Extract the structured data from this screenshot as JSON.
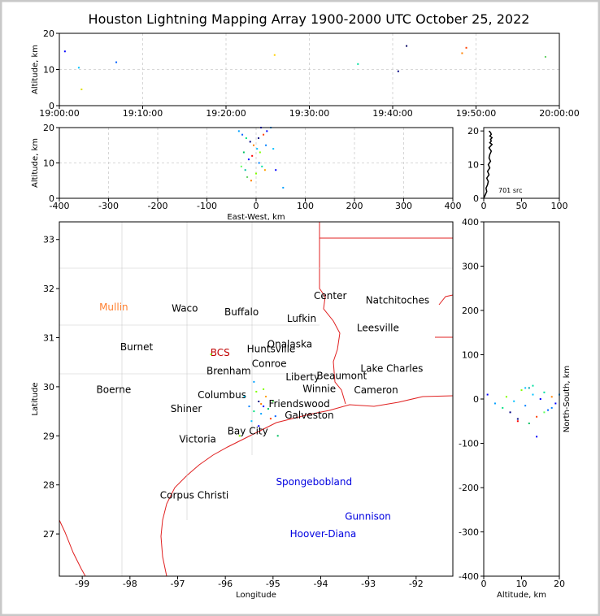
{
  "chart_data": [
    {
      "type": "scatter",
      "title": "Houston Lightning Mapping Array 1900-2000 UTC October 25, 2022",
      "ylabel": "Altitude, km",
      "x": [
        "19:00:40",
        "19:02:20",
        "19:02:40",
        "19:06:50",
        "19:25:50",
        "19:35:50",
        "19:40:40",
        "19:41:40",
        "19:48:20",
        "19:48:50",
        "19:58:20"
      ],
      "y": [
        15,
        10.5,
        4.5,
        12,
        14,
        11.5,
        9.5,
        16.5,
        14.5,
        16,
        13.5
      ],
      "colors": [
        "#0000ff",
        "#00c0ff",
        "#e0e000",
        "#0060ff",
        "#ffd000",
        "#00e0a0",
        "#000080",
        "#000060",
        "#ff8000",
        "#ff4000",
        "#60d060"
      ],
      "xlim": [
        "19:00:00",
        "20:00:00"
      ],
      "xticks": [
        "19:00:00",
        "19:10:00",
        "19:20:00",
        "19:30:00",
        "19:40:00",
        "19:50:00",
        "20:00:00"
      ],
      "ylim": [
        0,
        20
      ],
      "yticks": [
        0,
        10,
        20
      ],
      "grid": true
    },
    {
      "type": "scatter",
      "xlabel": "East-West, km",
      "ylabel": "Altitude, km",
      "x": [
        -35,
        -28,
        -20,
        -12,
        -5,
        2,
        8,
        15,
        22,
        30,
        -30,
        -22,
        -15,
        -8,
        0,
        6,
        12,
        18,
        40,
        55,
        -25,
        -10,
        5,
        20,
        35,
        -18,
        10
      ],
      "y": [
        19,
        18,
        17,
        16,
        15,
        14,
        13,
        18,
        19,
        20,
        9,
        8,
        11,
        12,
        7,
        10,
        9,
        8,
        8,
        3,
        13,
        5,
        17,
        15,
        14,
        6,
        20
      ],
      "colors": [
        "#00a0ff",
        "#0060ff",
        "#00e080",
        "#000080",
        "#ff8000",
        "#00c0ff",
        "#80ff00",
        "#ff4000",
        "#0000ff",
        "#00a0ff",
        "#60ff60",
        "#00c0a0",
        "#0000ff",
        "#ff0000",
        "#80ff00",
        "#0080ff",
        "#00e0a0",
        "#ffa000",
        "#0000ff",
        "#00a0ff",
        "#00c060",
        "#ff8000",
        "#000080",
        "#0080ff",
        "#00c0ff",
        "#60d060",
        "#0000ff"
      ],
      "xlim": [
        -400,
        400
      ],
      "xticks": [
        -400,
        -300,
        -200,
        -100,
        0,
        100,
        200,
        300,
        400
      ],
      "ylim": [
        0,
        20
      ],
      "yticks": [
        0,
        10,
        20
      ],
      "grid": true
    },
    {
      "type": "line",
      "annotation": "701 src",
      "x": [
        0,
        2,
        4,
        3,
        5,
        6,
        4,
        7,
        5,
        8,
        6,
        9,
        7,
        8,
        10,
        7,
        9,
        11,
        8,
        10,
        9,
        11,
        8,
        10,
        9,
        7
      ],
      "y": [
        0,
        1,
        2,
        3,
        4,
        5,
        6,
        7,
        8,
        9,
        10,
        11,
        12,
        13,
        14,
        15,
        15.5,
        16,
        16.5,
        17,
        17.5,
        18,
        18.5,
        19,
        19.5,
        20
      ],
      "xlim": [
        0,
        100
      ],
      "xticks": [
        0,
        50,
        100
      ],
      "ylim": [
        0,
        21
      ],
      "yticks": [
        0,
        10,
        20
      ],
      "color": "#000000"
    },
    {
      "type": "map",
      "xlabel": "Longitude",
      "ylabel": "Latitude",
      "xlim": [
        -99.48,
        -91.23
      ],
      "xticks": [
        -99,
        -98,
        -97,
        -96,
        -95,
        -94,
        -93,
        -92
      ],
      "ylim": [
        26.14,
        33.36
      ],
      "yticks": [
        27,
        28,
        29,
        30,
        31,
        32,
        33
      ],
      "places": [
        {
          "name": "Mullin",
          "lon": -98.34,
          "lat": 31.62,
          "color": "#ff8030"
        },
        {
          "name": "Waco",
          "lon": -96.85,
          "lat": 31.6,
          "color": "#000000"
        },
        {
          "name": "Buffalo",
          "lon": -95.66,
          "lat": 31.52,
          "color": "#000000"
        },
        {
          "name": "Center",
          "lon": -93.8,
          "lat": 31.85,
          "color": "#000000"
        },
        {
          "name": "Natchitoches",
          "lon": -92.39,
          "lat": 31.76,
          "color": "#000000"
        },
        {
          "name": "Lufkin",
          "lon": -94.4,
          "lat": 31.39,
          "color": "#000000"
        },
        {
          "name": "Leesville",
          "lon": -92.8,
          "lat": 31.2,
          "color": "#000000"
        },
        {
          "name": "Burnet",
          "lon": -97.86,
          "lat": 30.81,
          "color": "#000000"
        },
        {
          "name": "BCS",
          "lon": -96.11,
          "lat": 30.69,
          "color": "#c00000"
        },
        {
          "name": "Huntsville",
          "lon": -95.04,
          "lat": 30.77,
          "color": "#000000"
        },
        {
          "name": "Onalaska",
          "lon": -94.65,
          "lat": 30.87,
          "color": "#000000"
        },
        {
          "name": "Conroe",
          "lon": -95.08,
          "lat": 30.47,
          "color": "#000000"
        },
        {
          "name": "Brenham",
          "lon": -95.93,
          "lat": 30.32,
          "color": "#000000"
        },
        {
          "name": "Lake Charles",
          "lon": -92.51,
          "lat": 30.37,
          "color": "#000000"
        },
        {
          "name": "Liberty",
          "lon": -94.38,
          "lat": 30.2,
          "color": "#000000"
        },
        {
          "name": "Beaumont",
          "lon": -93.56,
          "lat": 30.22,
          "color": "#000000"
        },
        {
          "name": "Boerne",
          "lon": -98.34,
          "lat": 29.94,
          "color": "#000000"
        },
        {
          "name": "Winnie",
          "lon": -94.03,
          "lat": 29.96,
          "color": "#000000"
        },
        {
          "name": "Cameron",
          "lon": -92.84,
          "lat": 29.93,
          "color": "#000000"
        },
        {
          "name": "Columbus",
          "lon": -96.07,
          "lat": 29.83,
          "color": "#000000"
        },
        {
          "name": "Shiner",
          "lon": -96.82,
          "lat": 29.55,
          "color": "#000000"
        },
        {
          "name": "Friendswood",
          "lon": -94.45,
          "lat": 29.65,
          "color": "#000000"
        },
        {
          "name": "Galveston",
          "lon": -94.24,
          "lat": 29.42,
          "color": "#000000"
        },
        {
          "name": "Bay City",
          "lon": -95.53,
          "lat": 29.1,
          "color": "#000000"
        },
        {
          "name": "Victoria",
          "lon": -96.58,
          "lat": 28.93,
          "color": "#000000"
        },
        {
          "name": "Spongebobland",
          "lon": -94.14,
          "lat": 28.06,
          "color": "#0000e0"
        },
        {
          "name": "Corpus Christi",
          "lon": -96.65,
          "lat": 27.79,
          "color": "#000000"
        },
        {
          "name": "Gunnison",
          "lon": -93.01,
          "lat": 27.36,
          "color": "#0000e0"
        },
        {
          "name": "Hoover-Diana",
          "lon": -93.95,
          "lat": 27.0,
          "color": "#0000e0"
        }
      ],
      "lon": [
        -95.6,
        -95.5,
        -95.4,
        -95.35,
        -95.3,
        -95.25,
        -95.2,
        -95.15,
        -95.1,
        -95.05,
        -95.0,
        -94.95,
        -95.45,
        -95.3,
        -95.2,
        -95.4,
        -96.3,
        -95.7,
        -94.9,
        -95.25
      ],
      "lat": [
        29.8,
        29.6,
        29.5,
        29.9,
        29.7,
        29.45,
        29.6,
        29.8,
        29.55,
        29.35,
        29.7,
        29.4,
        29.3,
        29.2,
        29.95,
        30.1,
        30.66,
        29.0,
        29.0,
        29.65
      ],
      "colors": [
        "#00c0ff",
        "#0080ff",
        "#00e080",
        "#80ff00",
        "#000080",
        "#00a0ff",
        "#0000ff",
        "#ffa000",
        "#00c060",
        "#ff4000",
        "#60ff60",
        "#0060ff",
        "#00c0ff",
        "#0000ff",
        "#80ff00",
        "#00a0ff",
        "#80ff00",
        "#80ff00",
        "#00c060",
        "#ff8000"
      ]
    },
    {
      "type": "scatter",
      "xlabel": "Altitude, km",
      "ylabel": "North-South, km",
      "x": [
        1,
        3,
        5,
        6,
        7,
        8,
        9,
        10,
        11,
        12,
        13,
        14,
        15,
        16,
        17,
        18,
        19,
        20,
        9,
        12,
        14,
        16,
        11,
        18,
        13
      ],
      "y": [
        10,
        -10,
        -20,
        5,
        -30,
        -5,
        -50,
        20,
        -15,
        25,
        10,
        -40,
        0,
        15,
        -25,
        5,
        -10,
        10,
        -45,
        -55,
        -85,
        -30,
        25,
        -20,
        30
      ],
      "colors": [
        "#0000ff",
        "#00a0ff",
        "#00e080",
        "#80ff00",
        "#000080",
        "#00c0ff",
        "#ff0000",
        "#80ff00",
        "#0080ff",
        "#00a0a0",
        "#00c0ff",
        "#ff4000",
        "#0000ff",
        "#00e0a0",
        "#0060ff",
        "#ff8000",
        "#0000ff",
        "#00a0ff",
        "#000080",
        "#00c060",
        "#0000ff",
        "#60ff60",
        "#00c0ff",
        "#0080ff",
        "#00e0a0"
      ],
      "xlim": [
        0,
        20
      ],
      "xticks": [
        0,
        10,
        20
      ],
      "ylim": [
        -400,
        400
      ],
      "yticks": [
        -400,
        -300,
        -200,
        -100,
        0,
        100,
        200,
        300,
        400
      ]
    }
  ]
}
